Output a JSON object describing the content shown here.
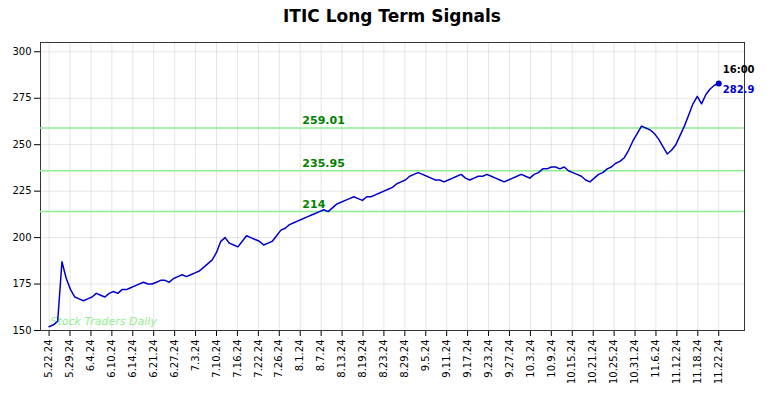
{
  "chart_data": {
    "type": "line",
    "title": "ITIC Long Term Signals",
    "color": "#0000cc",
    "x": [
      0,
      1,
      2,
      3,
      4,
      5,
      6,
      7,
      8,
      9,
      10,
      11,
      12,
      13,
      14,
      15,
      16,
      17,
      18,
      19,
      20,
      21,
      22,
      23,
      24,
      25,
      26,
      27,
      28,
      29,
      30,
      31,
      32,
      33,
      34,
      35,
      36,
      37,
      38,
      39,
      40,
      41,
      42,
      43,
      44,
      45,
      46,
      47,
      48,
      49,
      50,
      51,
      52,
      53,
      54,
      55,
      56,
      57,
      58,
      59,
      60,
      61,
      62,
      63,
      64,
      65,
      66,
      67,
      68,
      69,
      70,
      71,
      72,
      73,
      74,
      75,
      76,
      77,
      78,
      79,
      80,
      81,
      82,
      83,
      84,
      85,
      86,
      87,
      88,
      89,
      90,
      91,
      92,
      93,
      94,
      95,
      96,
      97,
      98,
      99,
      100,
      101,
      102,
      103,
      104,
      105,
      106,
      107,
      108,
      109,
      110,
      111,
      112,
      113,
      114,
      115,
      116,
      117,
      118,
      119,
      120,
      121,
      122,
      123,
      124,
      125,
      126,
      127,
      128,
      129,
      130,
      131,
      132,
      133,
      134,
      135,
      136,
      137,
      138,
      139,
      140,
      141,
      142,
      143,
      144,
      145,
      146,
      147,
      148,
      149,
      150,
      151,
      152,
      153,
      154,
      155,
      156
    ],
    "values": [
      152,
      153,
      155,
      187,
      178,
      172,
      168,
      167,
      166,
      167,
      168,
      170,
      169,
      168,
      170,
      171,
      170,
      172,
      172,
      173,
      174,
      175,
      176,
      175,
      175,
      176,
      177,
      177,
      176,
      178,
      179,
      180,
      179,
      180,
      181,
      182,
      184,
      186,
      188,
      192,
      198,
      200,
      197,
      196,
      195,
      198,
      201,
      200,
      199,
      198,
      196,
      197,
      198,
      201,
      204,
      205,
      207,
      208,
      209,
      210,
      211,
      212,
      213,
      214,
      215,
      214,
      216,
      218,
      219,
      220,
      221,
      222,
      221,
      220,
      222,
      222,
      223,
      224,
      225,
      226,
      227,
      229,
      230,
      231,
      233,
      234,
      235,
      234,
      233,
      232,
      231,
      231,
      230,
      231,
      232,
      233,
      234,
      232,
      231,
      232,
      233,
      233,
      234,
      233,
      232,
      231,
      230,
      231,
      232,
      233,
      234,
      233,
      232,
      234,
      235,
      237,
      237,
      238,
      238,
      237,
      238,
      236,
      235,
      234,
      233,
      231,
      230,
      232,
      234,
      235,
      237,
      238,
      240,
      241,
      243,
      247,
      252,
      256,
      260,
      259,
      258,
      256,
      253,
      249,
      245,
      247,
      250,
      255,
      260,
      266,
      272,
      276,
      272,
      277,
      280,
      282,
      283
    ],
    "xlim": [
      -2,
      162
    ],
    "xticks": [
      {
        "value": 0,
        "label": "5.22.24"
      },
      {
        "value": 4.875,
        "label": "5.29.24"
      },
      {
        "value": 9.75,
        "label": "6.4.24"
      },
      {
        "value": 14.625,
        "label": "6.10.24"
      },
      {
        "value": 19.5,
        "label": "6.14.24"
      },
      {
        "value": 24.375,
        "label": "6.21.24"
      },
      {
        "value": 29.25,
        "label": "6.27.24"
      },
      {
        "value": 34.125,
        "label": "7.3.24"
      },
      {
        "value": 39,
        "label": "7.10.24"
      },
      {
        "value": 43.875,
        "label": "7.16.24"
      },
      {
        "value": 48.75,
        "label": "7.22.24"
      },
      {
        "value": 53.625,
        "label": "7.26.24"
      },
      {
        "value": 58.5,
        "label": "8.1.24"
      },
      {
        "value": 63.375,
        "label": "8.7.24"
      },
      {
        "value": 68.25,
        "label": "8.13.24"
      },
      {
        "value": 73.125,
        "label": "8.19.24"
      },
      {
        "value": 78,
        "label": "8.23.24"
      },
      {
        "value": 82.875,
        "label": "8.29.24"
      },
      {
        "value": 87.75,
        "label": "9.5.24"
      },
      {
        "value": 92.625,
        "label": "9.11.24"
      },
      {
        "value": 97.5,
        "label": "9.17.24"
      },
      {
        "value": 102.375,
        "label": "9.23.24"
      },
      {
        "value": 107.25,
        "label": "9.27.24"
      },
      {
        "value": 112.125,
        "label": "10.3.24"
      },
      {
        "value": 117,
        "label": "10.9.24"
      },
      {
        "value": 121.875,
        "label": "10.15.24"
      },
      {
        "value": 126.75,
        "label": "10.21.24"
      },
      {
        "value": 131.625,
        "label": "10.25.24"
      },
      {
        "value": 136.5,
        "label": "10.31.24"
      },
      {
        "value": 141.375,
        "label": "11.6.24"
      },
      {
        "value": 146.25,
        "label": "11.12.24"
      },
      {
        "value": 151.125,
        "label": "11.18.24"
      },
      {
        "value": 156,
        "label": "11.22.24"
      }
    ],
    "ylim": [
      150,
      305
    ],
    "yticks": [
      150,
      175,
      200,
      225,
      250,
      275,
      300
    ],
    "grid": true,
    "hlines": [
      {
        "value": 214.0,
        "label": "214",
        "color": "#90ee90",
        "label_color": "green"
      },
      {
        "value": 235.95,
        "label": "235.95",
        "color": "#90ee90",
        "label_color": "green"
      },
      {
        "value": 259.01,
        "label": "259.01",
        "color": "#90ee90",
        "label_color": "green"
      }
    ],
    "annotations": [
      {
        "text": "16:00",
        "color": "#000000"
      },
      {
        "text": "282.9",
        "color": "#0000cc"
      }
    ],
    "watermark": {
      "text": "Stock Traders Daily",
      "color": "#90EE90"
    }
  }
}
